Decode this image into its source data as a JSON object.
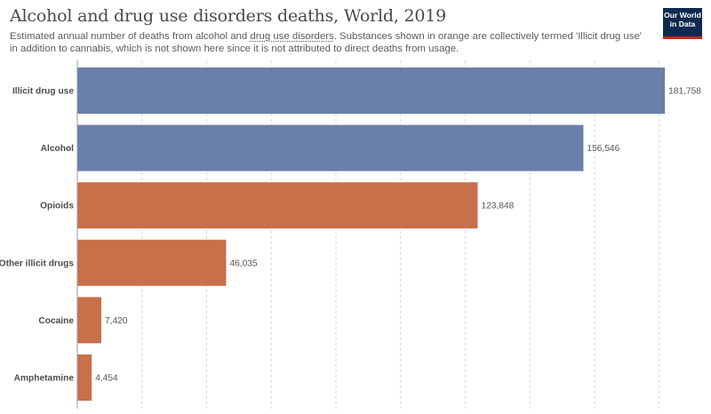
{
  "header": {
    "title": "Alcohol and drug use disorders deaths, World, 2019",
    "subtitle_part1": "Estimated annual number of deaths from alcohol and ",
    "subtitle_link": "drug use disorders",
    "subtitle_part2": ". Substances shown in orange are collectively termed 'Illicit drug use' in addition to cannabis, which is not shown here since it is not attributed to direct deaths from usage.",
    "logo_line1": "Our World",
    "logo_line2": "in Data"
  },
  "colors": {
    "blue": "#6a7fab",
    "orange": "#c8704a",
    "grid": "#d6d6d6",
    "logo_bg": "#0e2a4f",
    "logo_accent": "#ce261e"
  },
  "chart_data": {
    "type": "bar",
    "orientation": "horizontal",
    "categories": [
      "Illicit drug use",
      "Alcohol",
      "Opioids",
      "Other illicit drugs",
      "Cocaine",
      "Amphetamine"
    ],
    "values": [
      181758,
      156546,
      123848,
      46035,
      7420,
      4454
    ],
    "value_labels": [
      "181,758",
      "156,546",
      "123,848",
      "46,035",
      "7,420",
      "4,454"
    ],
    "bar_colors": [
      "blue",
      "blue",
      "orange",
      "orange",
      "orange",
      "orange"
    ],
    "xlim": [
      0,
      182000
    ],
    "grid": true
  }
}
